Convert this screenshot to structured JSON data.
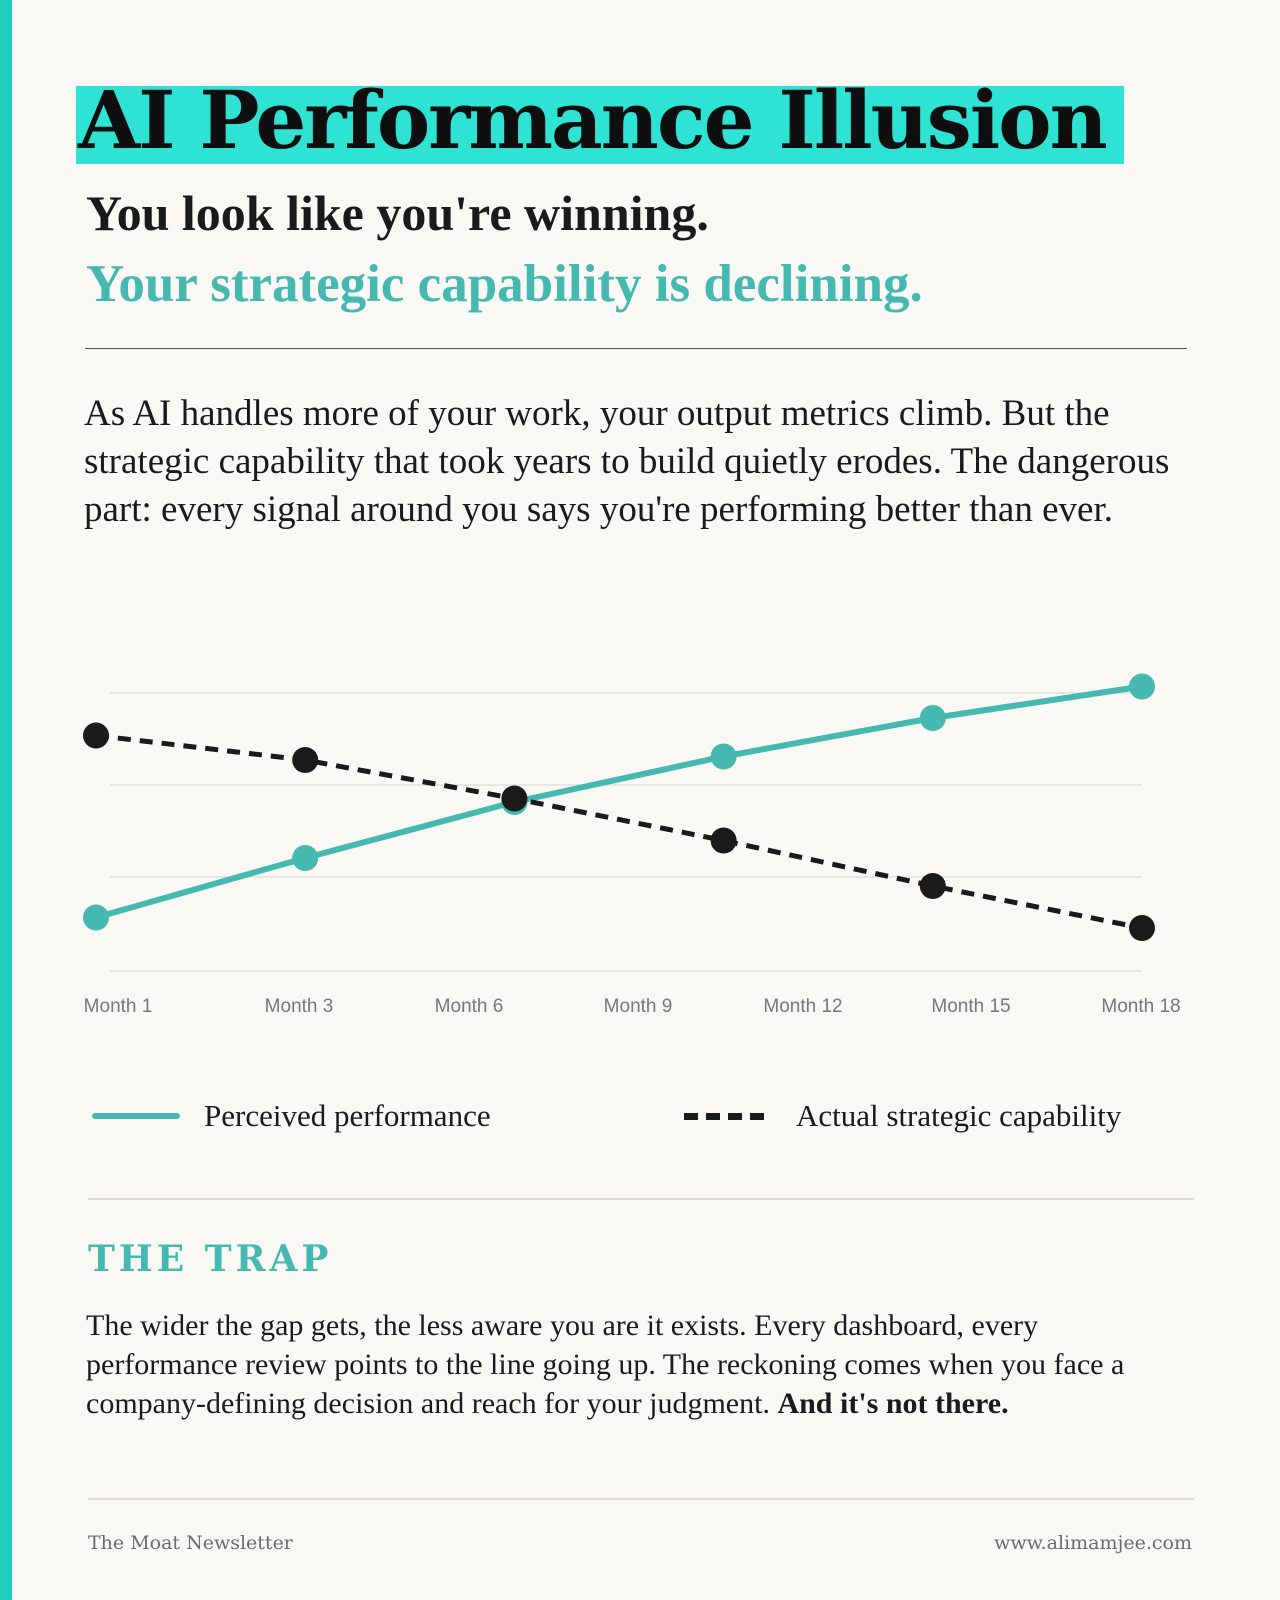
{
  "title": "AI Performance Illusion",
  "subtitle_1": "You look like you're winning.",
  "subtitle_2": "Your strategic capability is declining.",
  "intro": "As AI handles more of your work, your output metrics climb. But the strategic capability that took years to build quietly erodes. The dangerous part: every signal around you says you're performing better than ever.",
  "colors": {
    "accent": "#1ecfc0",
    "highlight": "#2ee3d4",
    "teal": "#45b8b0",
    "dark": "#1a1a1a"
  },
  "chart_data": {
    "type": "line",
    "x_tick_labels": [
      "Month 1",
      "Month 3",
      "Month 6",
      "Month 9",
      "Month 12",
      "Month 15",
      "Month 18"
    ],
    "ylim": [
      0,
      100
    ],
    "grid": "horizontal",
    "legend_position": "bottom",
    "series": [
      {
        "name": "Perceived performance",
        "style": "solid",
        "color": "#45b8b0",
        "points": [
          {
            "x": 1,
            "y": 15
          },
          {
            "x": 4,
            "y": 32
          },
          {
            "x": 7,
            "y": 48
          },
          {
            "x": 10,
            "y": 61
          },
          {
            "x": 13,
            "y": 72
          },
          {
            "x": 16,
            "y": 81
          }
        ]
      },
      {
        "name": "Actual strategic capability",
        "style": "dashed",
        "color": "#1a1a1a",
        "points": [
          {
            "x": 1,
            "y": 67
          },
          {
            "x": 4,
            "y": 60
          },
          {
            "x": 7,
            "y": 49
          },
          {
            "x": 10,
            "y": 37
          },
          {
            "x": 13,
            "y": 24
          },
          {
            "x": 16,
            "y": 12
          }
        ]
      }
    ]
  },
  "trap": {
    "heading": "THE TRAP",
    "body": "The wider the gap gets, the less aware you are it exists. Every dashboard, every performance review points to the line going up. The reckoning comes when you face a company-defining decision and reach for your judgment.",
    "emphasis": "And it's not there."
  },
  "footer": {
    "left": "The Moat Newsletter",
    "right": "www.alimamjee.com"
  }
}
